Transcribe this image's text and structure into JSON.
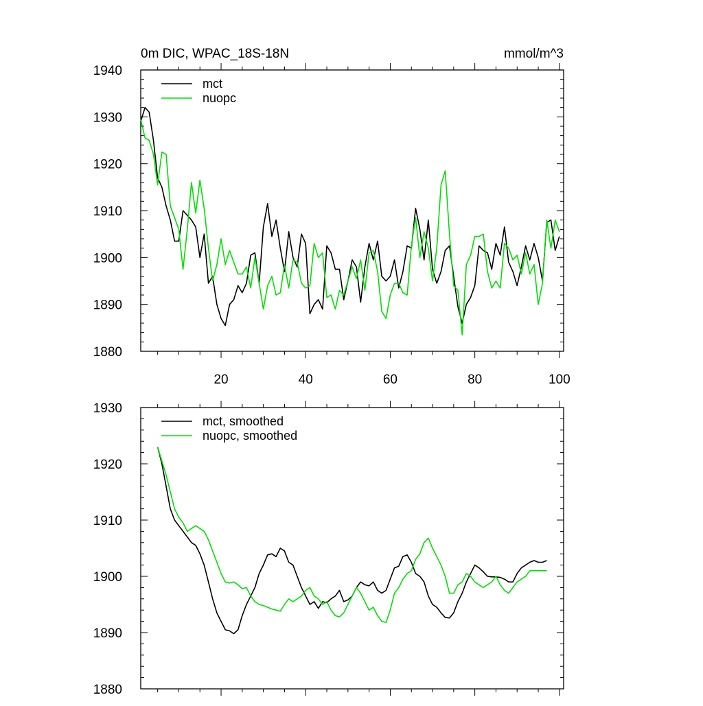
{
  "colors": {
    "mct": "#000000",
    "nuopc": "#00e000",
    "axis": "#000000",
    "background": "#ffffff"
  },
  "chart_data": [
    {
      "type": "line",
      "title": "0m DIC, WPAC_18S-18N",
      "units": "mmol/m^3",
      "xlim": [
        1,
        101
      ],
      "ylim": [
        1880,
        1940
      ],
      "y_ticks": [
        1880,
        1890,
        1900,
        1910,
        1920,
        1930,
        1940
      ],
      "y_tick_labels": [
        "1880",
        "1890",
        "1900",
        "1910",
        "1920",
        "1930",
        "1940"
      ],
      "x_ticks": [
        20,
        40,
        60,
        80,
        100
      ],
      "x_tick_labels": [
        "20",
        "40",
        "60",
        "80",
        "100"
      ],
      "legend_position": "top-left",
      "x": [
        1,
        2,
        3,
        4,
        5,
        6,
        7,
        8,
        9,
        10,
        11,
        12,
        13,
        14,
        15,
        16,
        17,
        18,
        19,
        20,
        21,
        22,
        23,
        24,
        25,
        26,
        27,
        28,
        29,
        30,
        31,
        32,
        33,
        34,
        35,
        36,
        37,
        38,
        39,
        40,
        41,
        42,
        43,
        44,
        45,
        46,
        47,
        48,
        49,
        50,
        51,
        52,
        53,
        54,
        55,
        56,
        57,
        58,
        59,
        60,
        61,
        62,
        63,
        64,
        65,
        66,
        67,
        68,
        69,
        70,
        71,
        72,
        73,
        74,
        75,
        76,
        77,
        78,
        79,
        80,
        81,
        82,
        83,
        84,
        85,
        86,
        87,
        88,
        89,
        90,
        91,
        92,
        93,
        94,
        95,
        96,
        97,
        98,
        99,
        100
      ],
      "series": [
        {
          "name": "mct",
          "color_key": "mct",
          "values": [
            1929,
            1932,
            1931,
            1925,
            1917,
            1915,
            1911,
            1908,
            1903.5,
            1903.5,
            1910,
            1909,
            1908,
            1906.5,
            1900,
            1905,
            1894.5,
            1896,
            1890,
            1887,
            1885.5,
            1890,
            1891,
            1894,
            1892.5,
            1894.5,
            1900.5,
            1901,
            1894.5,
            1906.5,
            1911.5,
            1904.5,
            1908,
            1902,
            1897,
            1905.5,
            1900,
            1898,
            1905,
            1903,
            1888,
            1890,
            1891,
            1889,
            1902.5,
            1901,
            1897.5,
            1897.5,
            1891,
            1895,
            1899.5,
            1898,
            1890.5,
            1898,
            1903,
            1899.5,
            1903.5,
            1896,
            1895,
            1896,
            1899.5,
            1893.5,
            1897,
            1902.5,
            1902,
            1910.5,
            1906,
            1899.5,
            1908,
            1897.5,
            1894.5,
            1897,
            1901.5,
            1902.5,
            1896,
            1889.5,
            1886,
            1890,
            1891.5,
            1894,
            1902.5,
            1901.5,
            1901,
            1897.5,
            1903,
            1900.5,
            1906.5,
            1899,
            1897,
            1894,
            1898,
            1902.5,
            1899.5,
            1903,
            1900,
            1895,
            1907.5,
            1908,
            1901.5,
            1904.5
          ]
        },
        {
          "name": "nuopc",
          "color_key": "nuopc",
          "values": [
            1929.5,
            1925.5,
            1925,
            1922,
            1915.5,
            1922.5,
            1922,
            1911,
            1908.5,
            1906,
            1897.5,
            1906,
            1916,
            1909.5,
            1916.5,
            1910.5,
            1902,
            1895,
            1898.5,
            1904,
            1898.5,
            1901.5,
            1899,
            1896.5,
            1896.5,
            1898,
            1893.5,
            1900,
            1894.5,
            1889,
            1894,
            1896,
            1892,
            1892.5,
            1898.5,
            1893.5,
            1899.5,
            1899,
            1894.5,
            1893.5,
            1894,
            1903,
            1900,
            1901,
            1891.5,
            1892,
            1889,
            1893,
            1892,
            1895,
            1898,
            1895.5,
            1899.5,
            1893,
            1901,
            1901.5,
            1897,
            1888.5,
            1887,
            1892,
            1894.5,
            1894.5,
            1892.5,
            1892,
            1902.5,
            1908.5,
            1900,
            1905.5,
            1902,
            1895,
            1902,
            1915.5,
            1918.5,
            1905,
            1894,
            1893,
            1883.5,
            1898.5,
            1900.5,
            1904.5,
            1904.5,
            1905,
            1897,
            1893.5,
            1895,
            1893.5,
            1903,
            1902,
            1899.5,
            1900.5,
            1896.5,
            1901,
            1896.5,
            1898.5,
            1890,
            1894.5,
            1908,
            1902,
            1908,
            1905.5
          ]
        }
      ]
    },
    {
      "type": "line",
      "title": "",
      "xlim": [
        1,
        101
      ],
      "ylim": [
        1880,
        1930
      ],
      "y_ticks": [
        1880,
        1890,
        1900,
        1910,
        1920,
        1930
      ],
      "y_tick_labels": [
        "1880",
        "1890",
        "1900",
        "1910",
        "1920",
        "1930"
      ],
      "x_ticks": [
        20,
        40,
        60,
        80,
        100
      ],
      "legend_position": "top-left",
      "x": [
        5,
        6,
        7,
        8,
        9,
        10,
        11,
        12,
        13,
        14,
        15,
        16,
        17,
        18,
        19,
        20,
        21,
        22,
        23,
        24,
        25,
        26,
        27,
        28,
        29,
        30,
        31,
        32,
        33,
        34,
        35,
        36,
        37,
        38,
        39,
        40,
        41,
        42,
        43,
        44,
        45,
        46,
        47,
        48,
        49,
        50,
        51,
        52,
        53,
        54,
        55,
        56,
        57,
        58,
        59,
        60,
        61,
        62,
        63,
        64,
        65,
        66,
        67,
        68,
        69,
        70,
        71,
        72,
        73,
        74,
        75,
        76,
        77,
        78,
        79,
        80,
        81,
        82,
        83,
        84,
        85,
        86,
        87,
        88,
        89,
        90,
        91,
        92,
        93,
        94,
        95,
        96,
        97
      ],
      "series": [
        {
          "name": "mct, smoothed",
          "color_key": "mct",
          "values": [
            1923,
            1920,
            1916,
            1912,
            1910,
            1909,
            1908,
            1907,
            1906,
            1905.5,
            1904,
            1902,
            1899,
            1896,
            1893.5,
            1892,
            1890.5,
            1890.3,
            1889.8,
            1890.5,
            1893,
            1895,
            1896.5,
            1898,
            1900.5,
            1902,
            1903.8,
            1904,
            1903.5,
            1905,
            1904.5,
            1902.5,
            1902,
            1900,
            1898,
            1896.5,
            1895,
            1895.5,
            1894.3,
            1895.5,
            1895.3,
            1896,
            1896.5,
            1897.5,
            1895.5,
            1895.8,
            1896.5,
            1898,
            1899,
            1898.5,
            1898.3,
            1899,
            1897.5,
            1897,
            1897.5,
            1899.5,
            1901.5,
            1901.8,
            1903.5,
            1903.8,
            1902.5,
            1900.5,
            1900,
            1899,
            1896.5,
            1895,
            1894.5,
            1893.5,
            1892.7,
            1892.6,
            1893.5,
            1895.5,
            1897,
            1899,
            1900.5,
            1902,
            1901.5,
            1900.8,
            1900,
            1899.9,
            1899.9,
            1899.8,
            1899.5,
            1899,
            1899,
            1900.5,
            1901.5,
            1902,
            1902.5,
            1902.8,
            1902.5,
            1902.5,
            1902.8
          ]
        },
        {
          "name": "nuopc, smoothed",
          "color_key": "nuopc",
          "values": [
            1923,
            1920.5,
            1918,
            1915,
            1912,
            1910.5,
            1909.5,
            1908,
            1908.5,
            1909,
            1908.5,
            1908,
            1906.5,
            1904.5,
            1902.5,
            1900.5,
            1899,
            1898.8,
            1899,
            1898.5,
            1897.8,
            1898,
            1896.5,
            1895.5,
            1895,
            1894.8,
            1894.5,
            1894.2,
            1894,
            1893.8,
            1895,
            1896,
            1895.5,
            1896,
            1896.5,
            1897.5,
            1898,
            1896.5,
            1896,
            1895,
            1895.5,
            1894,
            1893,
            1892.8,
            1893.5,
            1895,
            1896.5,
            1898,
            1897,
            1895.5,
            1894,
            1894.5,
            1893,
            1892,
            1891.8,
            1894,
            1897,
            1898,
            1899.5,
            1900.5,
            1901,
            1903,
            1904,
            1906,
            1906.8,
            1905,
            1903.5,
            1902,
            1900,
            1897,
            1897,
            1898.5,
            1899,
            1900.5,
            1900,
            1899,
            1898.5,
            1898,
            1898.5,
            1899,
            1900,
            1898.5,
            1897.5,
            1897,
            1898,
            1899,
            1899.5,
            1900,
            1901,
            1901,
            1901,
            1901,
            1901
          ]
        }
      ]
    }
  ]
}
